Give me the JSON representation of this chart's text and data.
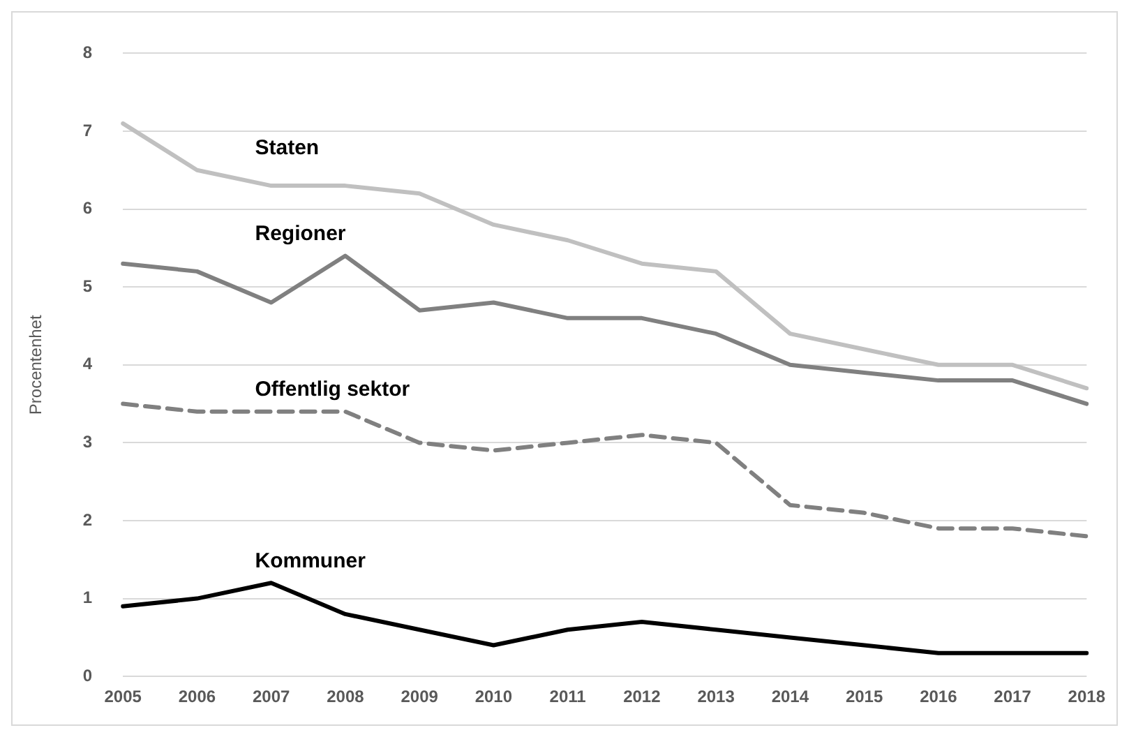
{
  "chart_data": {
    "type": "line",
    "ylabel": "Procentenhet",
    "categories": [
      "2005",
      "2006",
      "2007",
      "2008",
      "2009",
      "2010",
      "2011",
      "2012",
      "2013",
      "2014",
      "2015",
      "2016",
      "2017",
      "2018"
    ],
    "series": [
      {
        "name": "Staten",
        "color": "#c0c0c0",
        "line_style": "solid",
        "values": [
          7.1,
          6.5,
          6.3,
          6.3,
          6.2,
          5.8,
          5.6,
          5.3,
          5.2,
          4.4,
          4.2,
          4.0,
          4.0,
          3.7
        ]
      },
      {
        "name": "Regioner",
        "color": "#808080",
        "line_style": "solid",
        "values": [
          5.3,
          5.2,
          4.8,
          5.4,
          4.7,
          4.8,
          4.6,
          4.6,
          4.4,
          4.0,
          3.9,
          3.8,
          3.8,
          3.5
        ]
      },
      {
        "name": "Offentlig sektor",
        "color": "#808080",
        "line_style": "dashed",
        "values": [
          3.5,
          3.4,
          3.4,
          3.4,
          3.0,
          2.9,
          3.0,
          3.1,
          3.0,
          2.2,
          2.1,
          1.9,
          1.9,
          1.8
        ]
      },
      {
        "name": "Kommuner",
        "color": "#000000",
        "line_style": "solid",
        "values": [
          0.9,
          1.0,
          1.2,
          0.8,
          0.6,
          0.4,
          0.6,
          0.7,
          0.6,
          0.5,
          0.4,
          0.3,
          0.3,
          0.3
        ]
      }
    ],
    "ylim": [
      0,
      8
    ],
    "yticks": [
      0,
      1,
      2,
      3,
      4,
      5,
      6,
      7,
      8
    ],
    "grid": "y",
    "legend": false,
    "marker": "none"
  }
}
